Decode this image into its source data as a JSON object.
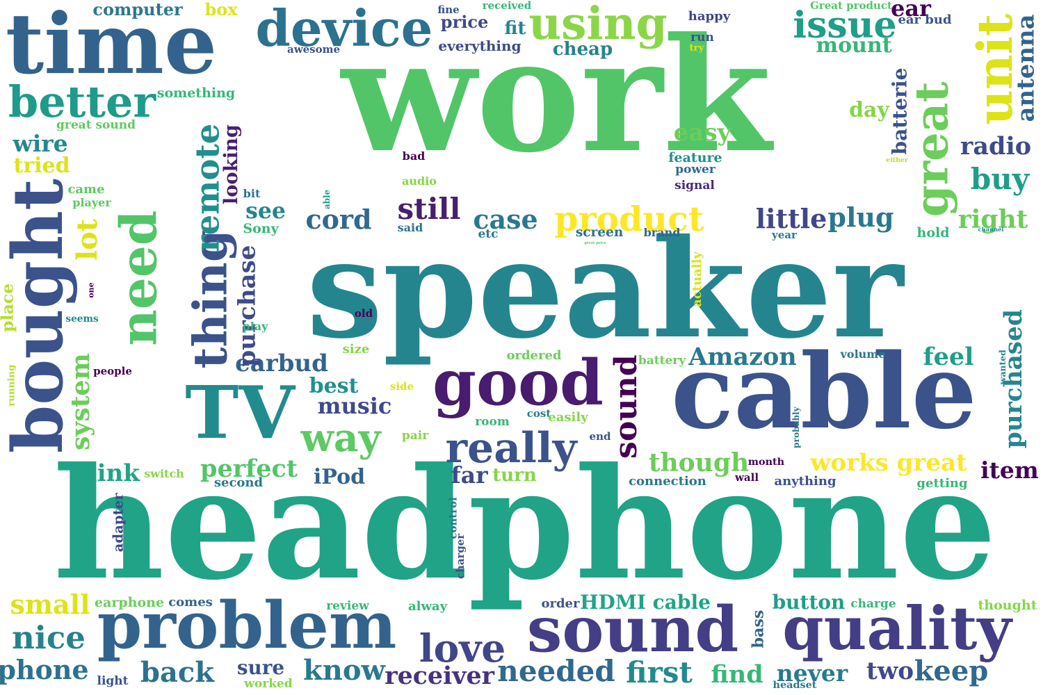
{
  "words": [
    {
      "text": "work",
      "color": "#52c569"
    },
    {
      "text": "headphone",
      "color": "#20a386"
    },
    {
      "text": "speaker",
      "color": "#25858e"
    },
    {
      "text": "need",
      "color": "#52c569"
    },
    {
      "text": "cable",
      "color": "#3b528b"
    },
    {
      "text": "time",
      "color": "#33638d"
    },
    {
      "text": "TV",
      "color": "#228b8d"
    },
    {
      "text": "problem",
      "color": "#33638d"
    },
    {
      "text": "sound",
      "color": "#433e85"
    },
    {
      "text": "quality",
      "color": "#433e85"
    },
    {
      "text": "good",
      "color": "#481c6e"
    },
    {
      "text": "bought",
      "color": "#3b528b"
    },
    {
      "text": "device",
      "color": "#2c728e"
    },
    {
      "text": "great",
      "color": "#6ccd5a"
    },
    {
      "text": "using",
      "color": "#8bd646"
    },
    {
      "text": "unit",
      "color": "#dde318"
    },
    {
      "text": "better",
      "color": "#1e9b8a"
    },
    {
      "text": "thing",
      "color": "#3b528b"
    },
    {
      "text": "really",
      "color": "#3b528b"
    },
    {
      "text": "love",
      "color": "#404688"
    },
    {
      "text": "product",
      "color": "#fde725"
    },
    {
      "text": "issue",
      "color": "#1f9e89"
    },
    {
      "text": "way",
      "color": "#5ec962"
    },
    {
      "text": "sound",
      "color": "#440154"
    },
    {
      "text": "needed",
      "color": "#31688e"
    },
    {
      "text": "receiver",
      "color": "#46327e"
    },
    {
      "text": "know",
      "color": "#2a788e"
    },
    {
      "text": "sure",
      "color": "#3b528b"
    },
    {
      "text": "first",
      "color": "#23898e"
    },
    {
      "text": "two",
      "color": "#3e4a89"
    },
    {
      "text": "keep",
      "color": "#31688e"
    },
    {
      "text": "nice",
      "color": "#26828e"
    },
    {
      "text": "phone",
      "color": "#2c728e"
    },
    {
      "text": "back",
      "color": "#2c728e"
    },
    {
      "text": "small",
      "color": "#dde318"
    },
    {
      "text": "find",
      "color": "#35b779"
    },
    {
      "text": "never",
      "color": "#2a788e"
    },
    {
      "text": "buy",
      "color": "#1f9e89"
    },
    {
      "text": "right",
      "color": "#6ccd5a"
    },
    {
      "text": "radio",
      "color": "#3e4a89"
    },
    {
      "text": "feel",
      "color": "#1f9e89"
    },
    {
      "text": "purchased",
      "color": "#25858e"
    },
    {
      "text": "antenna",
      "color": "#33638d"
    },
    {
      "text": "batterie",
      "color": "#3b528b"
    },
    {
      "text": "ear",
      "color": "#440154"
    },
    {
      "text": "mount",
      "color": "#35b779"
    },
    {
      "text": "day",
      "color": "#86d549"
    },
    {
      "text": "easy",
      "color": "#6ccd5a"
    },
    {
      "text": "still",
      "color": "#481f70"
    },
    {
      "text": "case",
      "color": "#2a788e"
    },
    {
      "text": "cord",
      "color": "#31688e"
    },
    {
      "text": "see",
      "color": "#25858e"
    },
    {
      "text": "little",
      "color": "#404688"
    },
    {
      "text": "plug",
      "color": "#2a788e"
    },
    {
      "text": "remote",
      "color": "#218f8d"
    },
    {
      "text": "looking",
      "color": "#481f70"
    },
    {
      "text": "lot",
      "color": "#dde318"
    },
    {
      "text": "wire",
      "color": "#23898e"
    },
    {
      "text": "tried",
      "color": "#dde318"
    },
    {
      "text": "system",
      "color": "#6ccd5a"
    },
    {
      "text": "think",
      "color": "#20a386"
    },
    {
      "text": "perfect",
      "color": "#52c569"
    },
    {
      "text": "earbud",
      "color": "#33638d"
    },
    {
      "text": "music",
      "color": "#3e4a89"
    },
    {
      "text": "best",
      "color": "#218f8d"
    },
    {
      "text": "Amazon",
      "color": "#2a788e"
    },
    {
      "text": "though",
      "color": "#6ccd5a"
    },
    {
      "text": "works great",
      "color": "#fde725"
    },
    {
      "text": "item",
      "color": "#440154"
    },
    {
      "text": "far",
      "color": "#3e4a89"
    },
    {
      "text": "turn",
      "color": "#86d549"
    },
    {
      "text": "iPod",
      "color": "#33638d"
    },
    {
      "text": "HDMI cable",
      "color": "#20a386"
    },
    {
      "text": "button",
      "color": "#1f9e89"
    },
    {
      "text": "purchase",
      "color": "#3e4a89"
    },
    {
      "text": "price",
      "color": "#3e4a89"
    },
    {
      "text": "fit",
      "color": "#25858e"
    },
    {
      "text": "cheap",
      "color": "#26828e"
    },
    {
      "text": "everything",
      "color": "#3e4a89"
    },
    {
      "text": "computer",
      "color": "#2a788e"
    },
    {
      "text": "box",
      "color": "#dde318"
    },
    {
      "text": "something",
      "color": "#35b779"
    },
    {
      "text": "great sound",
      "color": "#5ec962"
    },
    {
      "text": "happy",
      "color": "#414487"
    },
    {
      "text": "run",
      "color": "#3b528b"
    },
    {
      "text": "try",
      "color": "#dde318"
    },
    {
      "text": "fine",
      "color": "#3b528b"
    },
    {
      "text": "received",
      "color": "#35b779"
    },
    {
      "text": "Great product",
      "color": "#52c569"
    },
    {
      "text": "ear bud",
      "color": "#3b528b"
    },
    {
      "text": "awesome",
      "color": "#3b528b"
    },
    {
      "text": "feature",
      "color": "#218f8d"
    },
    {
      "text": "power",
      "color": "#31688e"
    },
    {
      "text": "signal",
      "color": "#482878"
    },
    {
      "text": "bad",
      "color": "#440154"
    },
    {
      "text": "audio",
      "color": "#86d549"
    },
    {
      "text": "came",
      "color": "#5ec962"
    },
    {
      "text": "player",
      "color": "#5ec962"
    },
    {
      "text": "bit",
      "color": "#2c728e"
    },
    {
      "text": "able",
      "color": "#1f9e89"
    },
    {
      "text": "Sony",
      "color": "#35b779"
    },
    {
      "text": "said",
      "color": "#2c728e"
    },
    {
      "text": "screen",
      "color": "#2c728e"
    },
    {
      "text": "brand",
      "color": "#33638d"
    },
    {
      "text": "great price",
      "color": "#5ec962"
    },
    {
      "text": "etc",
      "color": "#2a788e"
    },
    {
      "text": "hold",
      "color": "#35b779"
    },
    {
      "text": "channel",
      "color": "#23898e"
    },
    {
      "text": "year",
      "color": "#2a788e"
    },
    {
      "text": "either",
      "color": "#b5de2b"
    },
    {
      "text": "one",
      "color": "#440154"
    },
    {
      "text": "place",
      "color": "#b5de2b"
    },
    {
      "text": "seems",
      "color": "#23898e"
    },
    {
      "text": "play",
      "color": "#35b779"
    },
    {
      "text": "old",
      "color": "#440154"
    },
    {
      "text": "actually",
      "color": "#dde318"
    },
    {
      "text": "size",
      "color": "#86d549"
    },
    {
      "text": "ordered",
      "color": "#6ccd5a"
    },
    {
      "text": "battery",
      "color": "#6ccd5a"
    },
    {
      "text": "volume",
      "color": "#2a788e"
    },
    {
      "text": "wanted",
      "color": "#25858e"
    },
    {
      "text": "people",
      "color": "#440154"
    },
    {
      "text": "running",
      "color": "#b5de2b"
    },
    {
      "text": "side",
      "color": "#dde318"
    },
    {
      "text": "room",
      "color": "#35b779"
    },
    {
      "text": "cost",
      "color": "#2a788e"
    },
    {
      "text": "easily",
      "color": "#86d549"
    },
    {
      "text": "end",
      "color": "#3b528b"
    },
    {
      "text": "pair",
      "color": "#86d549"
    },
    {
      "text": "probably",
      "color": "#2a788e"
    },
    {
      "text": "month",
      "color": "#440154"
    },
    {
      "text": "wall",
      "color": "#440154"
    },
    {
      "text": "switch",
      "color": "#86d549"
    },
    {
      "text": "second",
      "color": "#2a788e"
    },
    {
      "text": "connection",
      "color": "#2a788e"
    },
    {
      "text": "anything",
      "color": "#3b528b"
    },
    {
      "text": "getting",
      "color": "#35b779"
    },
    {
      "text": "adapter",
      "color": "#3e4a89"
    },
    {
      "text": "control",
      "color": "#2a788e"
    },
    {
      "text": "charger",
      "color": "#3b528b"
    },
    {
      "text": "earphone",
      "color": "#6ccd5a"
    },
    {
      "text": "comes",
      "color": "#33638d"
    },
    {
      "text": "review",
      "color": "#35b779"
    },
    {
      "text": "alway",
      "color": "#35b779"
    },
    {
      "text": "order",
      "color": "#3b528b"
    },
    {
      "text": "charge",
      "color": "#35b779"
    },
    {
      "text": "thought",
      "color": "#86d549"
    },
    {
      "text": "bass",
      "color": "#33638d"
    },
    {
      "text": "light",
      "color": "#3b528b"
    },
    {
      "text": "worked",
      "color": "#86d549"
    },
    {
      "text": "headset",
      "color": "#2a788e"
    }
  ]
}
